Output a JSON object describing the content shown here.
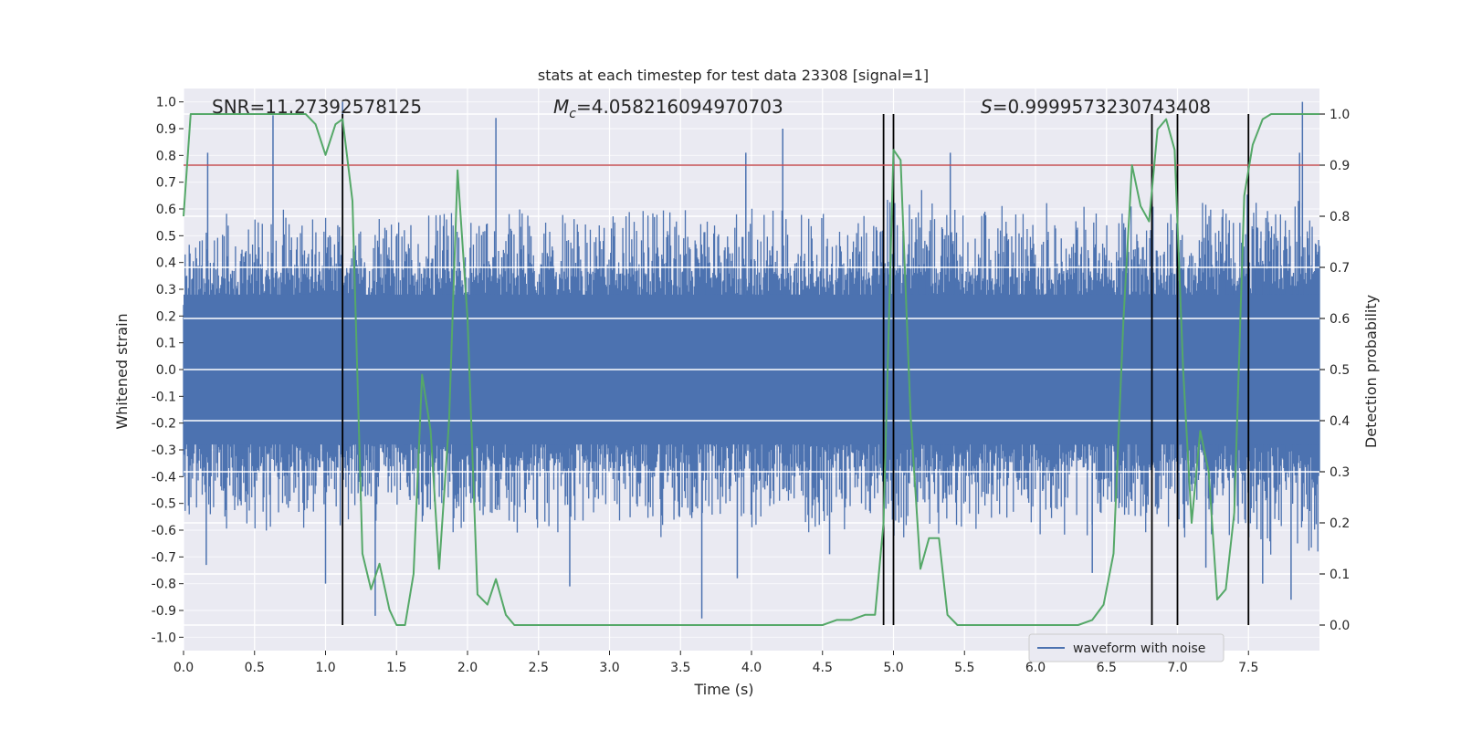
{
  "chart_data": {
    "type": "line",
    "title": "stats at each timestep for test data 23308 [signal=1]",
    "xlabel": "Time (s)",
    "ylabel_left": "Whitened strain",
    "ylabel_right": "Detection probability",
    "xlim": [
      0.0,
      8.0
    ],
    "ylim_left": [
      -1.05,
      1.05
    ],
    "ylim_right": [
      -0.05,
      1.05
    ],
    "x_ticks": [
      "0.0",
      "0.5",
      "1.0",
      "1.5",
      "2.0",
      "2.5",
      "3.0",
      "3.5",
      "4.0",
      "4.5",
      "5.0",
      "5.5",
      "6.0",
      "6.5",
      "7.0",
      "7.5"
    ],
    "y_left_ticks": [
      "-1.0",
      "-0.9",
      "-0.8",
      "-0.7",
      "-0.6",
      "-0.5",
      "-0.4",
      "-0.3",
      "-0.2",
      "-0.1",
      "0.0",
      "0.1",
      "0.2",
      "0.3",
      "0.4",
      "0.5",
      "0.6",
      "0.7",
      "0.8",
      "0.9",
      "1.0"
    ],
    "y_right_ticks": [
      "0.0",
      "0.1",
      "0.2",
      "0.3",
      "0.4",
      "0.5",
      "0.6",
      "0.7",
      "0.8",
      "0.9",
      "1.0"
    ],
    "grid": true,
    "legend_position": "lower-right",
    "annotations": {
      "snr": "SNR=11.27392578125",
      "mc_symbol": "M",
      "mc_sub": "c",
      "mc_value": "=4.058216094970703",
      "s_symbol": "S",
      "s_value": "=0.9999573230743408"
    },
    "threshold": {
      "value": 0.9,
      "axis": "right",
      "color": "#c44e52"
    },
    "vertical_lines_x": [
      1.12,
      4.93,
      5.0,
      6.82,
      7.0,
      7.5
    ],
    "series": [
      {
        "name": "waveform with noise",
        "axis": "left",
        "color": "#4c72b0",
        "envelope": {
          "x": [
            0.0,
            0.5,
            1.0,
            1.5,
            2.0,
            2.5,
            3.0,
            3.5,
            4.0,
            4.5,
            4.9,
            5.0,
            5.5,
            6.0,
            6.5,
            7.0,
            7.5,
            8.0
          ],
          "upper": [
            0.42,
            0.45,
            0.45,
            0.42,
            0.45,
            0.45,
            0.45,
            0.45,
            0.45,
            0.45,
            0.45,
            0.5,
            0.45,
            0.45,
            0.45,
            0.45,
            0.5,
            0.55
          ],
          "lower": [
            -0.42,
            -0.45,
            -0.45,
            -0.42,
            -0.45,
            -0.45,
            -0.45,
            -0.45,
            -0.45,
            -0.45,
            -0.45,
            -0.5,
            -0.45,
            -0.45,
            -0.45,
            -0.45,
            -0.5,
            -0.55
          ]
        },
        "spikes": [
          {
            "x": 0.17,
            "y": 0.81
          },
          {
            "x": 0.63,
            "y": 0.95
          },
          {
            "x": 1.12,
            "y": 1.0
          },
          {
            "x": 2.2,
            "y": 0.94
          },
          {
            "x": 3.96,
            "y": 0.81
          },
          {
            "x": 4.22,
            "y": 0.9
          },
          {
            "x": 5.4,
            "y": 0.81
          },
          {
            "x": 7.88,
            "y": 1.0
          },
          {
            "x": 7.86,
            "y": 0.81
          },
          {
            "x": 0.16,
            "y": -0.73
          },
          {
            "x": 1.0,
            "y": -0.8
          },
          {
            "x": 1.35,
            "y": -0.92
          },
          {
            "x": 2.72,
            "y": -0.81
          },
          {
            "x": 3.65,
            "y": -0.93
          },
          {
            "x": 3.9,
            "y": -0.78
          },
          {
            "x": 4.55,
            "y": -0.69
          },
          {
            "x": 6.4,
            "y": -0.76
          },
          {
            "x": 7.2,
            "y": -0.74
          },
          {
            "x": 7.6,
            "y": -0.8
          },
          {
            "x": 7.8,
            "y": -0.86
          }
        ]
      },
      {
        "name": "detection probability",
        "axis": "right",
        "color": "#55a868",
        "x": [
          0.0,
          0.05,
          0.12,
          0.2,
          0.3,
          0.4,
          0.5,
          0.6,
          0.7,
          0.8,
          0.86,
          0.93,
          1.0,
          1.07,
          1.12,
          1.19,
          1.26,
          1.32,
          1.38,
          1.45,
          1.5,
          1.56,
          1.62,
          1.68,
          1.74,
          1.8,
          1.87,
          1.93,
          2.0,
          2.07,
          2.14,
          2.2,
          2.27,
          2.33,
          2.5,
          2.6,
          2.7,
          2.9,
          3.0,
          3.1,
          3.3,
          3.5,
          3.7,
          3.9,
          4.1,
          4.3,
          4.5,
          4.6,
          4.7,
          4.8,
          4.87,
          4.93,
          5.0,
          5.05,
          5.12,
          5.19,
          5.25,
          5.32,
          5.38,
          5.45,
          5.5,
          5.6,
          5.8,
          6.0,
          6.2,
          6.3,
          6.4,
          6.48,
          6.55,
          6.62,
          6.68,
          6.74,
          6.8,
          6.86,
          6.92,
          6.98,
          7.04,
          7.1,
          7.16,
          7.22,
          7.28,
          7.34,
          7.4,
          7.47,
          7.53,
          7.6,
          7.66,
          7.72,
          7.8,
          7.9,
          8.0
        ],
        "y": [
          0.8,
          1.0,
          1.0,
          1.0,
          1.0,
          1.0,
          1.0,
          1.0,
          1.0,
          1.0,
          1.0,
          0.98,
          0.92,
          0.98,
          0.99,
          0.83,
          0.14,
          0.07,
          0.12,
          0.03,
          0.0,
          0.0,
          0.1,
          0.49,
          0.38,
          0.11,
          0.4,
          0.89,
          0.6,
          0.06,
          0.04,
          0.09,
          0.02,
          0.0,
          0.0,
          0.0,
          0.0,
          0.0,
          0.0,
          0.0,
          0.0,
          0.0,
          0.0,
          0.0,
          0.0,
          0.0,
          0.0,
          0.01,
          0.01,
          0.02,
          0.02,
          0.2,
          0.93,
          0.91,
          0.41,
          0.11,
          0.17,
          0.17,
          0.02,
          0.0,
          0.0,
          0.0,
          0.0,
          0.0,
          0.0,
          0.0,
          0.01,
          0.04,
          0.14,
          0.6,
          0.9,
          0.82,
          0.79,
          0.97,
          0.99,
          0.93,
          0.5,
          0.2,
          0.38,
          0.3,
          0.05,
          0.07,
          0.22,
          0.84,
          0.94,
          0.99,
          1.0,
          1.0,
          1.0,
          1.0,
          1.0
        ]
      }
    ]
  }
}
